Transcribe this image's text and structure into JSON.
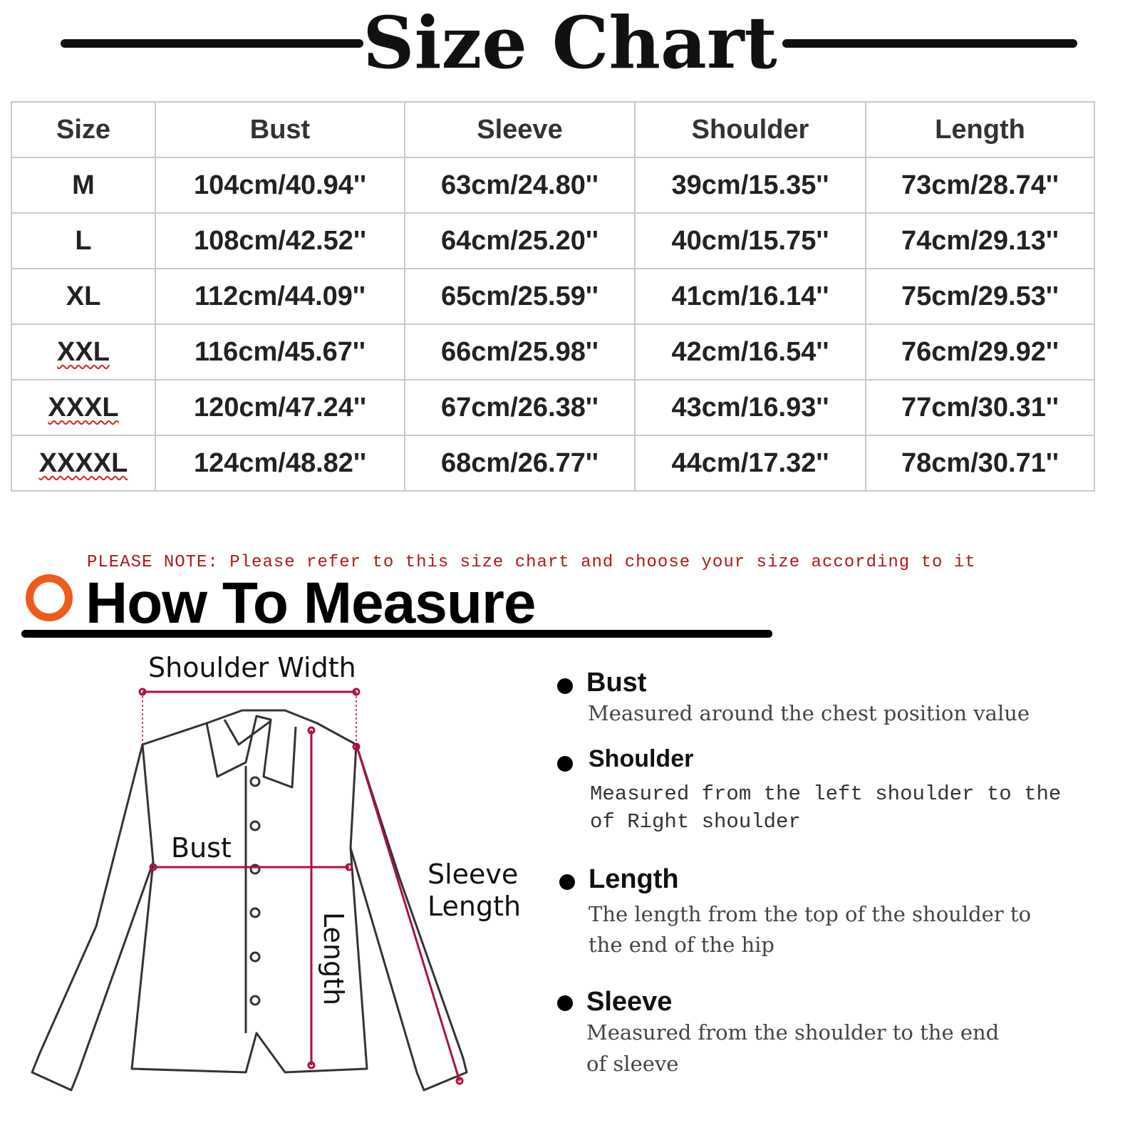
{
  "title": "Size Chart",
  "table": {
    "headers": [
      "Size",
      "Bust",
      "Sleeve",
      "Shoulder",
      "Length"
    ],
    "rows": [
      [
        "M",
        "104cm/40.94''",
        "63cm/24.80''",
        "39cm/15.35''",
        "73cm/28.74''"
      ],
      [
        "L",
        "108cm/42.52''",
        "64cm/25.20''",
        "40cm/15.75''",
        "74cm/29.13''"
      ],
      [
        "XL",
        "112cm/44.09''",
        "65cm/25.59''",
        "41cm/16.14''",
        "75cm/29.53''"
      ],
      [
        "XXL",
        "116cm/45.67''",
        "66cm/25.98''",
        "42cm/16.54''",
        "76cm/29.92''"
      ],
      [
        "XXXL",
        "120cm/47.24''",
        "67cm/26.38''",
        "43cm/16.93''",
        "77cm/30.31''"
      ],
      [
        "XXXXL",
        "124cm/48.82''",
        "68cm/26.77''",
        "44cm/17.32''",
        "78cm/30.71''"
      ]
    ]
  },
  "note": "PLEASE NOTE: Please refer to this size chart and choose your size according to it",
  "how_to_measure": {
    "title": "How To Measure",
    "accent_color": "#f05a1a",
    "diagram_labels": {
      "shoulder_width": "Shoulder Width",
      "bust": "Bust",
      "length": "Length",
      "sleeve_line1": "Sleeve",
      "sleeve_line2": "Length"
    },
    "items": [
      {
        "title": "Bust",
        "desc": [
          "Measured around the chest position value"
        ]
      },
      {
        "title": "Shoulder",
        "desc": [
          "Measured from the left shoulder to the",
          "of Right shoulder"
        ]
      },
      {
        "title": "Length",
        "desc": [
          "The length from the top of the shoulder to",
          "the end of the hip"
        ]
      },
      {
        "title": "Sleeve",
        "desc": [
          "Measured from the shoulder to the end",
          "of sleeve"
        ]
      }
    ]
  }
}
